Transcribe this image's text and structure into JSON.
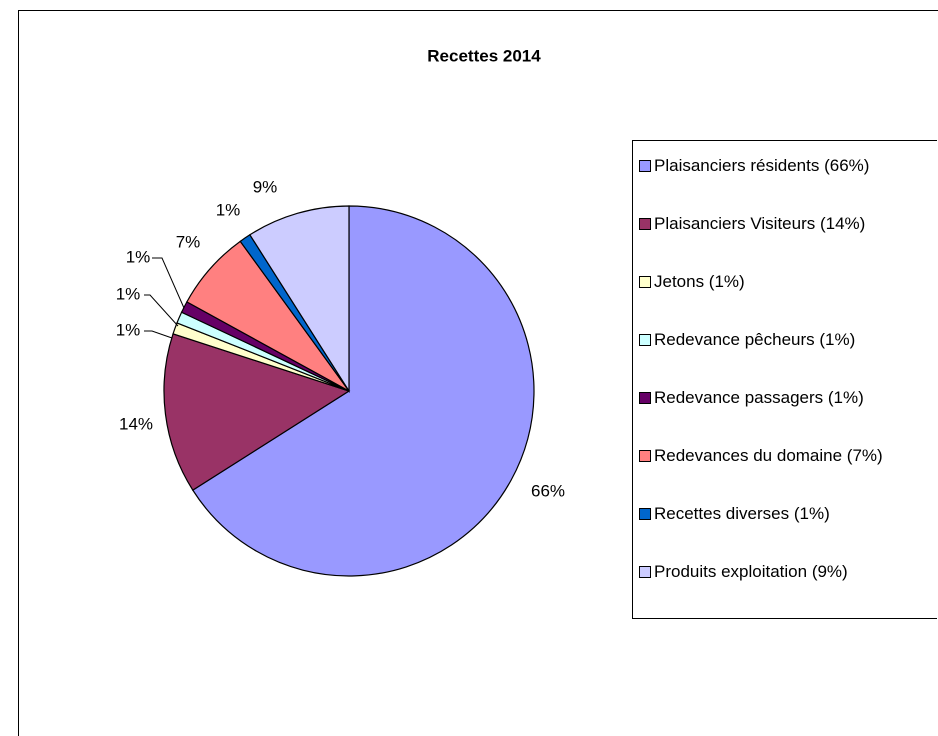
{
  "chart_data": {
    "type": "pie",
    "title": "Recettes 2014",
    "categories": [
      "Plaisanciers résidents (66%)",
      "Plaisanciers Visiteurs (14%)",
      "Jetons (1%)",
      "Redevance pêcheurs (1%)",
      "Redevance passagers (1%)",
      "Redevances du domaine (7%)",
      "Recettes diverses (1%)",
      "Produits exploitation (9%)"
    ],
    "values": [
      66,
      14,
      1,
      1,
      1,
      7,
      1,
      9
    ],
    "value_labels": [
      "66%",
      "14%",
      "1%",
      "1%",
      "1%",
      "7%",
      "1%",
      "9%"
    ],
    "colors": [
      "#9999ff",
      "#993366",
      "#ffffcc",
      "#ccffff",
      "#660066",
      "#ff8080",
      "#0066cc",
      "#ccccff"
    ],
    "legend": "right"
  }
}
